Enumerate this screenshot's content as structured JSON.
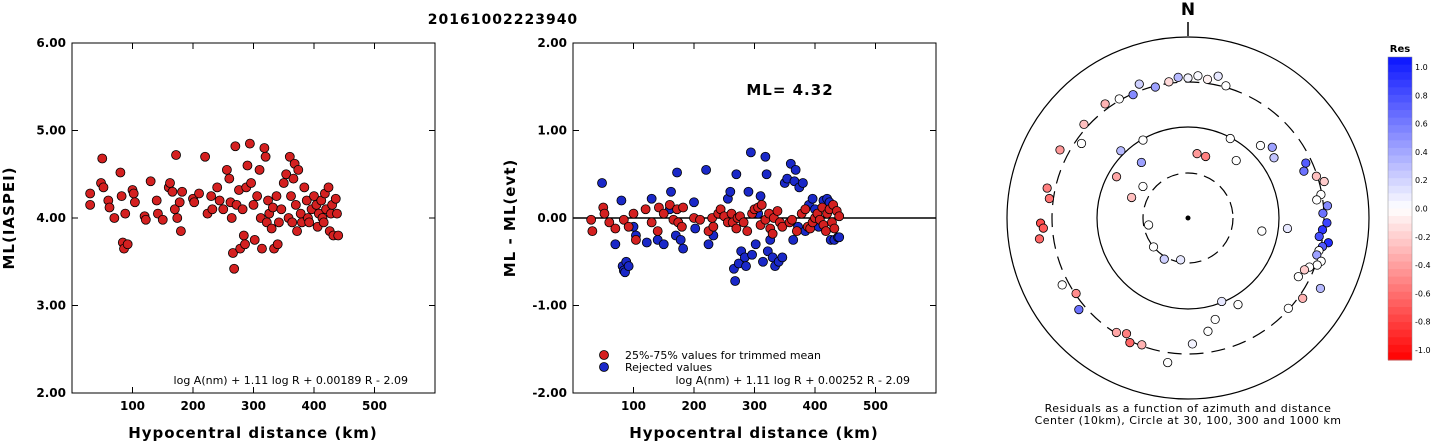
{
  "title": "20161002223940",
  "colors": {
    "accepted": "#d42020",
    "rejected": "#1a28c8"
  },
  "chart_data": [
    {
      "type": "scatter",
      "ylabel": "ML(IASPEI)",
      "xlabel": "Hypocentral distance (km)",
      "xlim": [
        0,
        600
      ],
      "ylim": [
        2.0,
        6.0
      ],
      "xticks": [
        "100",
        "200",
        "300",
        "400",
        "500"
      ],
      "yticks": [
        "2.00",
        "3.00",
        "4.00",
        "5.00",
        "6.00"
      ],
      "formula": "log A(nm) + 1.11 log R + 0.00189 R - 2.09",
      "points": [
        [
          30,
          4.28
        ],
        [
          30,
          4.15
        ],
        [
          48,
          4.4
        ],
        [
          50,
          4.68
        ],
        [
          52,
          4.35
        ],
        [
          60,
          4.2
        ],
        [
          62,
          4.12
        ],
        [
          70,
          4.0
        ],
        [
          80,
          4.52
        ],
        [
          82,
          4.25
        ],
        [
          84,
          3.72
        ],
        [
          86,
          3.65
        ],
        [
          88,
          4.05
        ],
        [
          92,
          3.7
        ],
        [
          100,
          4.32
        ],
        [
          102,
          4.28
        ],
        [
          104,
          4.18
        ],
        [
          120,
          4.02
        ],
        [
          122,
          3.98
        ],
        [
          130,
          4.42
        ],
        [
          140,
          4.2
        ],
        [
          142,
          4.05
        ],
        [
          150,
          3.98
        ],
        [
          160,
          4.35
        ],
        [
          162,
          4.4
        ],
        [
          166,
          4.3
        ],
        [
          170,
          4.1
        ],
        [
          172,
          4.72
        ],
        [
          174,
          4.0
        ],
        [
          178,
          4.18
        ],
        [
          180,
          3.85
        ],
        [
          182,
          4.3
        ],
        [
          200,
          4.22
        ],
        [
          202,
          4.18
        ],
        [
          210,
          4.28
        ],
        [
          220,
          4.7
        ],
        [
          224,
          4.05
        ],
        [
          230,
          4.25
        ],
        [
          232,
          4.1
        ],
        [
          240,
          4.35
        ],
        [
          244,
          4.2
        ],
        [
          250,
          4.1
        ],
        [
          256,
          4.55
        ],
        [
          260,
          4.45
        ],
        [
          262,
          4.18
        ],
        [
          264,
          4.0
        ],
        [
          266,
          3.6
        ],
        [
          268,
          3.42
        ],
        [
          270,
          4.82
        ],
        [
          272,
          4.15
        ],
        [
          276,
          4.32
        ],
        [
          278,
          3.65
        ],
        [
          282,
          4.1
        ],
        [
          284,
          3.8
        ],
        [
          286,
          3.7
        ],
        [
          288,
          4.35
        ],
        [
          290,
          4.6
        ],
        [
          294,
          4.85
        ],
        [
          296,
          4.4
        ],
        [
          300,
          4.15
        ],
        [
          302,
          3.75
        ],
        [
          306,
          4.25
        ],
        [
          310,
          4.55
        ],
        [
          312,
          4.0
        ],
        [
          314,
          3.65
        ],
        [
          318,
          4.8
        ],
        [
          320,
          4.7
        ],
        [
          322,
          3.95
        ],
        [
          324,
          4.2
        ],
        [
          326,
          4.05
        ],
        [
          330,
          3.88
        ],
        [
          332,
          4.12
        ],
        [
          334,
          3.65
        ],
        [
          338,
          4.25
        ],
        [
          340,
          3.7
        ],
        [
          342,
          3.95
        ],
        [
          346,
          4.1
        ],
        [
          350,
          4.4
        ],
        [
          354,
          4.5
        ],
        [
          358,
          4.0
        ],
        [
          360,
          4.7
        ],
        [
          362,
          4.25
        ],
        [
          364,
          3.95
        ],
        [
          366,
          4.45
        ],
        [
          368,
          4.62
        ],
        [
          370,
          4.15
        ],
        [
          372,
          3.85
        ],
        [
          374,
          4.55
        ],
        [
          378,
          4.05
        ],
        [
          380,
          3.95
        ],
        [
          384,
          4.35
        ],
        [
          388,
          4.2
        ],
        [
          390,
          4.0
        ],
        [
          392,
          3.95
        ],
        [
          396,
          4.1
        ],
        [
          400,
          4.25
        ],
        [
          404,
          4.15
        ],
        [
          406,
          3.9
        ],
        [
          408,
          4.05
        ],
        [
          412,
          4.2
        ],
        [
          414,
          4.0
        ],
        [
          416,
          3.95
        ],
        [
          418,
          4.28
        ],
        [
          420,
          4.1
        ],
        [
          424,
          4.35
        ],
        [
          426,
          3.85
        ],
        [
          428,
          4.05
        ],
        [
          430,
          4.15
        ],
        [
          432,
          3.8
        ],
        [
          436,
          4.22
        ],
        [
          438,
          4.05
        ],
        [
          440,
          3.8
        ]
      ]
    },
    {
      "type": "scatter",
      "ylabel": "ML - ML(evt)",
      "xlabel": "Hypocentral distance (km)",
      "xlim": [
        0,
        600
      ],
      "ylim": [
        -2.0,
        2.0
      ],
      "xticks": [
        "100",
        "200",
        "300",
        "400",
        "500"
      ],
      "yticks": [
        "-2.00",
        "-1.00",
        "0.00",
        "1.00",
        "2.00"
      ],
      "annotation": "ML= 4.32",
      "legend": [
        "25%-75% values for trimmed mean",
        "Rejected values"
      ],
      "formula": "log A(nm) + 1.11 log R + 0.00252 R - 2.09",
      "hline": 0.0,
      "accepted": [
        [
          30,
          -0.02
        ],
        [
          32,
          -0.15
        ],
        [
          50,
          0.12
        ],
        [
          52,
          0.05
        ],
        [
          60,
          -0.05
        ],
        [
          70,
          -0.12
        ],
        [
          84,
          -0.02
        ],
        [
          92,
          -0.1
        ],
        [
          100,
          0.05
        ],
        [
          104,
          -0.25
        ],
        [
          120,
          0.1
        ],
        [
          130,
          -0.05
        ],
        [
          140,
          -0.15
        ],
        [
          142,
          0.12
        ],
        [
          150,
          0.05
        ],
        [
          160,
          0.15
        ],
        [
          166,
          -0.02
        ],
        [
          172,
          0.1
        ],
        [
          174,
          -0.05
        ],
        [
          180,
          -0.1
        ],
        [
          182,
          0.12
        ],
        [
          200,
          0.0
        ],
        [
          210,
          -0.02
        ],
        [
          224,
          -0.15
        ],
        [
          230,
          0.0
        ],
        [
          232,
          -0.1
        ],
        [
          240,
          0.05
        ],
        [
          244,
          0.1
        ],
        [
          250,
          0.02
        ],
        [
          256,
          -0.05
        ],
        [
          262,
          0.05
        ],
        [
          264,
          -0.05
        ],
        [
          270,
          -0.12
        ],
        [
          272,
          0.0
        ],
        [
          276,
          0.02
        ],
        [
          282,
          -0.05
        ],
        [
          288,
          -0.15
        ],
        [
          296,
          0.05
        ],
        [
          300,
          0.1
        ],
        [
          306,
          0.12
        ],
        [
          310,
          -0.08
        ],
        [
          312,
          0.15
        ],
        [
          318,
          -0.02
        ],
        [
          324,
          0.05
        ],
        [
          326,
          -0.12
        ],
        [
          330,
          -0.18
        ],
        [
          332,
          0.0
        ],
        [
          338,
          0.08
        ],
        [
          342,
          -0.05
        ],
        [
          346,
          -0.1
        ],
        [
          358,
          -0.05
        ],
        [
          362,
          -0.02
        ],
        [
          370,
          -0.15
        ],
        [
          378,
          0.05
        ],
        [
          384,
          0.1
        ],
        [
          388,
          -0.1
        ],
        [
          392,
          -0.12
        ],
        [
          396,
          -0.05
        ],
        [
          400,
          0.0
        ],
        [
          404,
          0.05
        ],
        [
          408,
          -0.02
        ],
        [
          412,
          0.12
        ],
        [
          414,
          -0.08
        ],
        [
          418,
          -0.15
        ],
        [
          420,
          0.05
        ],
        [
          424,
          0.1
        ],
        [
          428,
          -0.05
        ],
        [
          430,
          0.15
        ],
        [
          432,
          -0.12
        ],
        [
          436,
          0.08
        ],
        [
          440,
          0.02
        ]
      ],
      "rejected": [
        [
          48,
          0.4
        ],
        [
          70,
          -0.3
        ],
        [
          80,
          0.2
        ],
        [
          82,
          -0.55
        ],
        [
          84,
          -0.6
        ],
        [
          86,
          -0.62
        ],
        [
          88,
          -0.5
        ],
        [
          92,
          -0.55
        ],
        [
          100,
          -0.1
        ],
        [
          104,
          -0.2
        ],
        [
          122,
          -0.28
        ],
        [
          130,
          0.22
        ],
        [
          140,
          -0.25
        ],
        [
          150,
          -0.3
        ],
        [
          160,
          0.1
        ],
        [
          162,
          0.3
        ],
        [
          170,
          -0.2
        ],
        [
          172,
          0.52
        ],
        [
          178,
          -0.25
        ],
        [
          182,
          -0.35
        ],
        [
          200,
          0.18
        ],
        [
          202,
          -0.12
        ],
        [
          220,
          0.55
        ],
        [
          224,
          -0.3
        ],
        [
          232,
          -0.2
        ],
        [
          256,
          0.22
        ],
        [
          260,
          0.3
        ],
        [
          266,
          -0.58
        ],
        [
          268,
          -0.72
        ],
        [
          270,
          0.5
        ],
        [
          274,
          -0.52
        ],
        [
          278,
          -0.38
        ],
        [
          284,
          -0.45
        ],
        [
          286,
          -0.55
        ],
        [
          290,
          0.3
        ],
        [
          294,
          0.75
        ],
        [
          296,
          -0.42
        ],
        [
          302,
          -0.3
        ],
        [
          306,
          0.05
        ],
        [
          310,
          0.25
        ],
        [
          314,
          -0.5
        ],
        [
          318,
          0.7
        ],
        [
          320,
          0.5
        ],
        [
          322,
          -0.38
        ],
        [
          326,
          -0.25
        ],
        [
          330,
          -0.45
        ],
        [
          334,
          -0.55
        ],
        [
          340,
          -0.5
        ],
        [
          346,
          -0.45
        ],
        [
          350,
          0.4
        ],
        [
          354,
          0.45
        ],
        [
          360,
          0.62
        ],
        [
          364,
          -0.25
        ],
        [
          366,
          0.42
        ],
        [
          368,
          0.55
        ],
        [
          372,
          -0.1
        ],
        [
          374,
          0.35
        ],
        [
          380,
          0.4
        ],
        [
          384,
          -0.15
        ],
        [
          390,
          0.15
        ],
        [
          396,
          0.22
        ],
        [
          400,
          0.1
        ],
        [
          406,
          -0.1
        ],
        [
          414,
          0.2
        ],
        [
          420,
          0.22
        ],
        [
          424,
          0.18
        ],
        [
          426,
          -0.25
        ],
        [
          432,
          -0.25
        ],
        [
          438,
          -0.22
        ],
        [
          440,
          -0.22
        ]
      ]
    },
    {
      "type": "scatter",
      "north_label": "N",
      "caption_line1": "Residuals as a function of azimuth and distance",
      "caption_line2": "Center (10km), Circle at 30, 100, 300 and 1000 km",
      "colorbar_title": "Res",
      "colorbar_ticks": [
        "1.0",
        "0.8",
        "0.6",
        "0.4",
        "0.2",
        "0.0",
        "-0.2",
        "-0.4",
        "-0.6",
        "-0.8",
        "-1.0"
      ],
      "points": [
        [
          0,
          280,
          0.05
        ],
        [
          4,
          285,
          0.02
        ],
        [
          8,
          280,
          -0.05
        ],
        [
          12,
          290,
          0.1
        ],
        [
          16,
          275,
          0.0
        ],
        [
          -4,
          282,
          0.3
        ],
        [
          -8,
          275,
          -0.15
        ],
        [
          -14,
          270,
          0.4
        ],
        [
          -20,
          285,
          0.2
        ],
        [
          -24,
          270,
          0.5
        ],
        [
          -30,
          275,
          0.0
        ],
        [
          -36,
          282,
          -0.3
        ],
        [
          -48,
          280,
          -0.25
        ],
        [
          -55,
          260,
          0.0
        ],
        [
          -62,
          290,
          -0.4
        ],
        [
          -78,
          288,
          -0.5
        ],
        [
          -82,
          280,
          -0.55
        ],
        [
          -92,
          295,
          -0.7
        ],
        [
          -94,
          290,
          -0.65
        ],
        [
          -98,
          300,
          -0.6
        ],
        [
          -118,
          285,
          0.0
        ],
        [
          -124,
          270,
          -0.45
        ],
        [
          -130,
          285,
          0.6
        ],
        [
          -148,
          270,
          -0.35
        ],
        [
          -152,
          262,
          -0.5
        ],
        [
          -155,
          275,
          -0.6
        ],
        [
          -160,
          270,
          -0.3
        ],
        [
          -172,
          292,
          0.0
        ],
        [
          -182,
          252,
          0.05
        ],
        [
          -30,
          180,
          0.0
        ],
        [
          -45,
          190,
          0.3
        ],
        [
          -60,
          165,
          -0.35
        ],
        [
          -40,
          145,
          0.4
        ],
        [
          -55,
          110,
          0.0
        ],
        [
          -70,
          120,
          -0.25
        ],
        [
          -100,
          80,
          0.0
        ],
        [
          -130,
          90,
          0.0
        ],
        [
          -150,
          95,
          0.2
        ],
        [
          -170,
          85,
          0.1
        ],
        [
          8,
          130,
          -0.4
        ],
        [
          16,
          128,
          -0.5
        ],
        [
          28,
          180,
          0.0
        ],
        [
          40,
          150,
          0.0
        ],
        [
          45,
          205,
          0.0
        ],
        [
          50,
          220,
          0.4
        ],
        [
          55,
          210,
          0.25
        ],
        [
          65,
          260,
          0.7
        ],
        [
          68,
          250,
          0.6
        ],
        [
          72,
          270,
          -0.25
        ],
        [
          75,
          282,
          -0.2
        ],
        [
          80,
          270,
          0.0
        ],
        [
          82,
          260,
          0.0
        ],
        [
          85,
          280,
          0.5
        ],
        [
          88,
          270,
          0.6
        ],
        [
          92,
          278,
          0.8
        ],
        [
          95,
          270,
          0.85
        ],
        [
          98,
          265,
          0.75
        ],
        [
          100,
          285,
          0.9
        ],
        [
          102,
          275,
          0.7
        ],
        [
          104,
          270,
          0.0
        ],
        [
          106,
          268,
          0.4
        ],
        [
          108,
          280,
          0.0
        ],
        [
          110,
          275,
          0.0
        ],
        [
          112,
          262,
          0.0
        ],
        [
          114,
          255,
          -0.2
        ],
        [
          118,
          250,
          0.0
        ],
        [
          96,
          200,
          0.1
        ],
        [
          100,
          150,
          0.0
        ],
        [
          118,
          300,
          0.3
        ],
        [
          125,
          280,
          -0.3
        ],
        [
          132,
          270,
          0.0
        ],
        [
          150,
          200,
          0.0
        ],
        [
          158,
          180,
          0.1
        ],
        [
          165,
          210,
          0.0
        ],
        [
          170,
          230,
          0.0
        ]
      ]
    }
  ]
}
